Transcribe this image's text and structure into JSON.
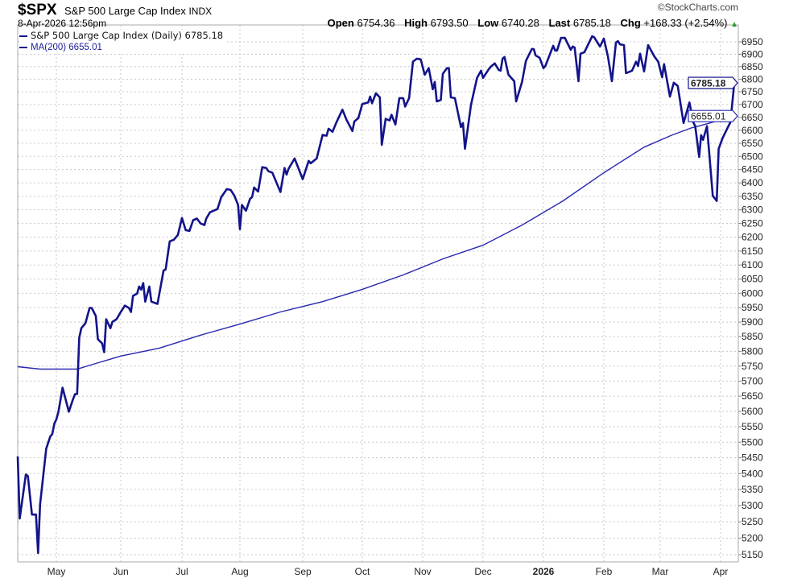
{
  "header": {
    "symbol": "$SPX",
    "name": "S&P 500 Large Cap Index",
    "exchange": "INDX",
    "datetime": "8-Apr-2026 12:56pm",
    "copyright": "©StockCharts.com",
    "open_label": "Open",
    "open": "6754.36",
    "high_label": "High",
    "high": "6793.50",
    "low_label": "Low",
    "low": "6740.28",
    "last_label": "Last",
    "last": "6785.18",
    "chg_label": "Chg",
    "chg": "+168.33 (+2.54%)",
    "chg_icon": "triangle-up-icon"
  },
  "legend": {
    "price": "S&P 500 Large Cap Index (Daily) 6785.18",
    "ma": "MA(200) 6655.01"
  },
  "colors": {
    "price": "#13138a",
    "ma": "#2828b0",
    "grid": "#c8c8c8",
    "up": "#2a9a2a"
  },
  "chart_data": {
    "type": "line",
    "yscale": "log",
    "ylim": [
      5150,
      6950
    ],
    "grid": true,
    "legend_placement": "top-left",
    "x_tick_labels": [
      "May",
      "Jun",
      "Jul",
      "Aug",
      "Sep",
      "Oct",
      "Nov",
      "Dec",
      "2026",
      "Feb",
      "Mar",
      "Apr"
    ],
    "y_tick_labels": [
      "5150",
      "5200",
      "5250",
      "5300",
      "5350",
      "5400",
      "5450",
      "5500",
      "5550",
      "5600",
      "5650",
      "5700",
      "5750",
      "5800",
      "5850",
      "5900",
      "5950",
      "6000",
      "6050",
      "6100",
      "6150",
      "6200",
      "6250",
      "6300",
      "6350",
      "6400",
      "6450",
      "6500",
      "6550",
      "6600",
      "6650",
      "6700",
      "6750",
      "6800",
      "6850",
      "6900",
      "6950"
    ],
    "last_value_tags": [
      "6785.18",
      "6655.01"
    ],
    "series": [
      {
        "name": "S&P 500 Large Cap Index (Daily)",
        "points": [
          [
            "2025-04-12",
            5454
          ],
          [
            "2025-04-13",
            5260
          ],
          [
            "2025-04-16",
            5397
          ],
          [
            "2025-04-17",
            5392
          ],
          [
            "2025-04-19",
            5272
          ],
          [
            "2025-04-21",
            5272
          ],
          [
            "2025-04-22",
            5155
          ],
          [
            "2025-04-23",
            5304
          ],
          [
            "2025-04-26",
            5479
          ],
          [
            "2025-04-28",
            5518
          ],
          [
            "2025-04-29",
            5526
          ],
          [
            "2025-04-30",
            5560
          ],
          [
            "2025-05-01",
            5574
          ],
          [
            "2025-05-02",
            5599
          ],
          [
            "2025-05-04",
            5678
          ],
          [
            "2025-05-07",
            5599
          ],
          [
            "2025-05-09",
            5639
          ],
          [
            "2025-05-10",
            5657
          ],
          [
            "2025-05-11",
            5657
          ],
          [
            "2025-05-12",
            5846
          ],
          [
            "2025-05-13",
            5879
          ],
          [
            "2025-05-15",
            5896
          ],
          [
            "2025-05-17",
            5949
          ],
          [
            "2025-05-18",
            5949
          ],
          [
            "2025-05-20",
            5921
          ],
          [
            "2025-05-21",
            5841
          ],
          [
            "2025-05-23",
            5827
          ],
          [
            "2025-05-24",
            5797
          ],
          [
            "2025-05-25",
            5910
          ],
          [
            "2025-05-27",
            5879
          ],
          [
            "2025-05-28",
            5901
          ],
          [
            "2025-05-30",
            5910
          ],
          [
            "2025-06-01",
            5935
          ],
          [
            "2025-06-03",
            5957
          ],
          [
            "2025-06-05",
            5949
          ],
          [
            "2025-06-06",
            5935
          ],
          [
            "2025-06-07",
            5991
          ],
          [
            "2025-06-09",
            5999
          ],
          [
            "2025-06-10",
            6024
          ],
          [
            "2025-06-11",
            6013
          ],
          [
            "2025-06-12",
            6036
          ],
          [
            "2025-06-13",
            5971
          ],
          [
            "2025-06-15",
            6024
          ],
          [
            "2025-06-16",
            5971
          ],
          [
            "2025-06-19",
            5963
          ],
          [
            "2025-06-22",
            6081
          ],
          [
            "2025-06-23",
            6084
          ],
          [
            "2025-06-25",
            6185
          ],
          [
            "2025-06-27",
            6191
          ],
          [
            "2025-06-29",
            6208
          ],
          [
            "2025-07-01",
            6270
          ],
          [
            "2025-07-03",
            6226
          ],
          [
            "2025-07-05",
            6223
          ],
          [
            "2025-07-07",
            6262
          ],
          [
            "2025-07-09",
            6268
          ],
          [
            "2025-07-11",
            6250
          ],
          [
            "2025-07-13",
            6244
          ],
          [
            "2025-07-14",
            6268
          ],
          [
            "2025-07-16",
            6291
          ],
          [
            "2025-07-20",
            6303
          ],
          [
            "2025-07-22",
            6347
          ],
          [
            "2025-07-25",
            6377
          ],
          [
            "2025-07-27",
            6374
          ],
          [
            "2025-07-29",
            6353
          ],
          [
            "2025-07-31",
            6318
          ],
          [
            "2025-08-01",
            6229
          ],
          [
            "2025-08-02",
            6318
          ],
          [
            "2025-08-04",
            6297
          ],
          [
            "2025-08-06",
            6341
          ],
          [
            "2025-08-07",
            6347
          ],
          [
            "2025-08-08",
            6383
          ],
          [
            "2025-08-10",
            6368
          ],
          [
            "2025-08-12",
            6459
          ],
          [
            "2025-08-14",
            6456
          ],
          [
            "2025-08-15",
            6444
          ],
          [
            "2025-08-17",
            6438
          ],
          [
            "2025-08-21",
            6366
          ],
          [
            "2025-08-23",
            6456
          ],
          [
            "2025-08-24",
            6431
          ],
          [
            "2025-08-25",
            6453
          ],
          [
            "2025-08-28",
            6492
          ],
          [
            "2025-09-01",
            6414
          ],
          [
            "2025-09-04",
            6483
          ],
          [
            "2025-09-05",
            6474
          ],
          [
            "2025-09-08",
            6492
          ],
          [
            "2025-09-11",
            6582
          ],
          [
            "2025-09-13",
            6579
          ],
          [
            "2025-09-14",
            6606
          ],
          [
            "2025-09-16",
            6594
          ],
          [
            "2025-09-18",
            6631
          ],
          [
            "2025-09-21",
            6680
          ],
          [
            "2025-09-23",
            6641
          ],
          [
            "2025-09-26",
            6597
          ],
          [
            "2025-09-27",
            6634
          ],
          [
            "2025-09-29",
            6647
          ],
          [
            "2025-10-01",
            6702
          ],
          [
            "2025-10-04",
            6708
          ],
          [
            "2025-10-05",
            6731
          ],
          [
            "2025-10-06",
            6705
          ],
          [
            "2025-10-08",
            6744
          ],
          [
            "2025-10-10",
            6728
          ],
          [
            "2025-10-11",
            6544
          ],
          [
            "2025-10-13",
            6644
          ],
          [
            "2025-10-15",
            6638
          ],
          [
            "2025-10-16",
            6660
          ],
          [
            "2025-10-18",
            6622
          ],
          [
            "2025-10-20",
            6725
          ],
          [
            "2025-10-22",
            6725
          ],
          [
            "2025-10-23",
            6692
          ],
          [
            "2025-10-25",
            6725
          ],
          [
            "2025-10-27",
            6870
          ],
          [
            "2025-10-29",
            6882
          ],
          [
            "2025-10-31",
            6879
          ],
          [
            "2025-11-02",
            6818
          ],
          [
            "2025-11-04",
            6844
          ],
          [
            "2025-11-06",
            6760
          ],
          [
            "2025-11-07",
            6789
          ],
          [
            "2025-11-08",
            6712
          ],
          [
            "2025-11-10",
            6718
          ],
          [
            "2025-11-11",
            6821
          ],
          [
            "2025-11-13",
            6844
          ],
          [
            "2025-11-14",
            6844
          ],
          [
            "2025-11-15",
            6728
          ],
          [
            "2025-11-17",
            6725
          ],
          [
            "2025-11-20",
            6612
          ],
          [
            "2025-11-21",
            6628
          ],
          [
            "2025-11-22",
            6529
          ],
          [
            "2025-11-25",
            6699
          ],
          [
            "2025-11-28",
            6805
          ],
          [
            "2025-11-30",
            6834
          ],
          [
            "2025-12-01",
            6805
          ],
          [
            "2025-12-04",
            6841
          ],
          [
            "2025-12-05",
            6850
          ],
          [
            "2025-12-07",
            6863
          ],
          [
            "2025-12-09",
            6837
          ],
          [
            "2025-12-10",
            6834
          ],
          [
            "2025-12-11",
            6882
          ],
          [
            "2025-12-12",
            6889
          ],
          [
            "2025-12-14",
            6818
          ],
          [
            "2025-12-17",
            6792
          ],
          [
            "2025-12-18",
            6712
          ],
          [
            "2025-12-21",
            6789
          ],
          [
            "2025-12-23",
            6873
          ],
          [
            "2025-12-26",
            6921
          ],
          [
            "2025-12-27",
            6921
          ],
          [
            "2025-12-28",
            6895
          ],
          [
            "2025-12-30",
            6886
          ],
          [
            "2026-01-01",
            6844
          ],
          [
            "2026-01-02",
            6853
          ],
          [
            "2026-01-06",
            6934
          ],
          [
            "2026-01-07",
            6915
          ],
          [
            "2026-01-08",
            6915
          ],
          [
            "2026-01-10",
            6966
          ],
          [
            "2026-01-12",
            6966
          ],
          [
            "2026-01-13",
            6950
          ],
          [
            "2026-01-15",
            6918
          ],
          [
            "2026-01-16",
            6931
          ],
          [
            "2026-01-17",
            6927
          ],
          [
            "2026-01-19",
            6792
          ],
          [
            "2026-01-20",
            6902
          ],
          [
            "2026-01-22",
            6908
          ],
          [
            "2026-01-26",
            6973
          ],
          [
            "2026-01-27",
            6969
          ],
          [
            "2026-01-30",
            6931
          ],
          [
            "2026-02-01",
            6963
          ],
          [
            "2026-02-03",
            6892
          ],
          [
            "2026-02-05",
            6792
          ],
          [
            "2026-02-07",
            6947
          ],
          [
            "2026-02-08",
            6953
          ],
          [
            "2026-02-09",
            6940
          ],
          [
            "2026-02-11",
            6937
          ],
          [
            "2026-02-12",
            6824
          ],
          [
            "2026-02-15",
            6834
          ],
          [
            "2026-02-17",
            6870
          ],
          [
            "2026-02-18",
            6853
          ],
          [
            "2026-02-19",
            6902
          ],
          [
            "2026-02-21",
            6831
          ],
          [
            "2026-02-23",
            6937
          ],
          [
            "2026-02-26",
            6892
          ],
          [
            "2026-02-28",
            6870
          ],
          [
            "2026-03-02",
            6808
          ],
          [
            "2026-03-03",
            6860
          ],
          [
            "2026-03-06",
            6731
          ],
          [
            "2026-03-08",
            6786
          ],
          [
            "2026-03-10",
            6773
          ],
          [
            "2026-03-12",
            6676
          ],
          [
            "2026-03-13",
            6628
          ],
          [
            "2026-03-16",
            6708
          ],
          [
            "2026-03-18",
            6631
          ],
          [
            "2026-03-19",
            6616
          ],
          [
            "2026-03-21",
            6498
          ],
          [
            "2026-03-22",
            6581
          ],
          [
            "2026-03-23",
            6563
          ],
          [
            "2026-03-25",
            6616
          ],
          [
            "2026-03-28",
            6352
          ],
          [
            "2026-03-30",
            6333
          ],
          [
            "2026-03-31",
            6529
          ],
          [
            "2026-04-02",
            6569
          ],
          [
            "2026-04-03",
            6585
          ],
          [
            "2026-04-05",
            6616
          ],
          [
            "2026-04-06",
            6631
          ],
          [
            "2026-04-08",
            6785.18
          ]
        ]
      },
      {
        "name": "MA(200)",
        "points": [
          [
            "2025-04-12",
            5748
          ],
          [
            "2025-04-23",
            5740
          ],
          [
            "2025-05-11",
            5740
          ],
          [
            "2025-05-20",
            5759
          ],
          [
            "2025-06-01",
            5784
          ],
          [
            "2025-06-20",
            5811
          ],
          [
            "2025-07-11",
            5855
          ],
          [
            "2025-08-01",
            5893
          ],
          [
            "2025-08-21",
            5935
          ],
          [
            "2025-09-11",
            5971
          ],
          [
            "2025-10-01",
            6014
          ],
          [
            "2025-10-22",
            6065
          ],
          [
            "2025-11-11",
            6122
          ],
          [
            "2025-12-01",
            6171
          ],
          [
            "2025-12-21",
            6244
          ],
          [
            "2026-01-11",
            6333
          ],
          [
            "2026-02-01",
            6438
          ],
          [
            "2026-02-21",
            6535
          ],
          [
            "2026-03-07",
            6581
          ],
          [
            "2026-03-17",
            6609
          ],
          [
            "2026-03-25",
            6625
          ],
          [
            "2026-04-08",
            6655.01
          ]
        ]
      }
    ]
  }
}
